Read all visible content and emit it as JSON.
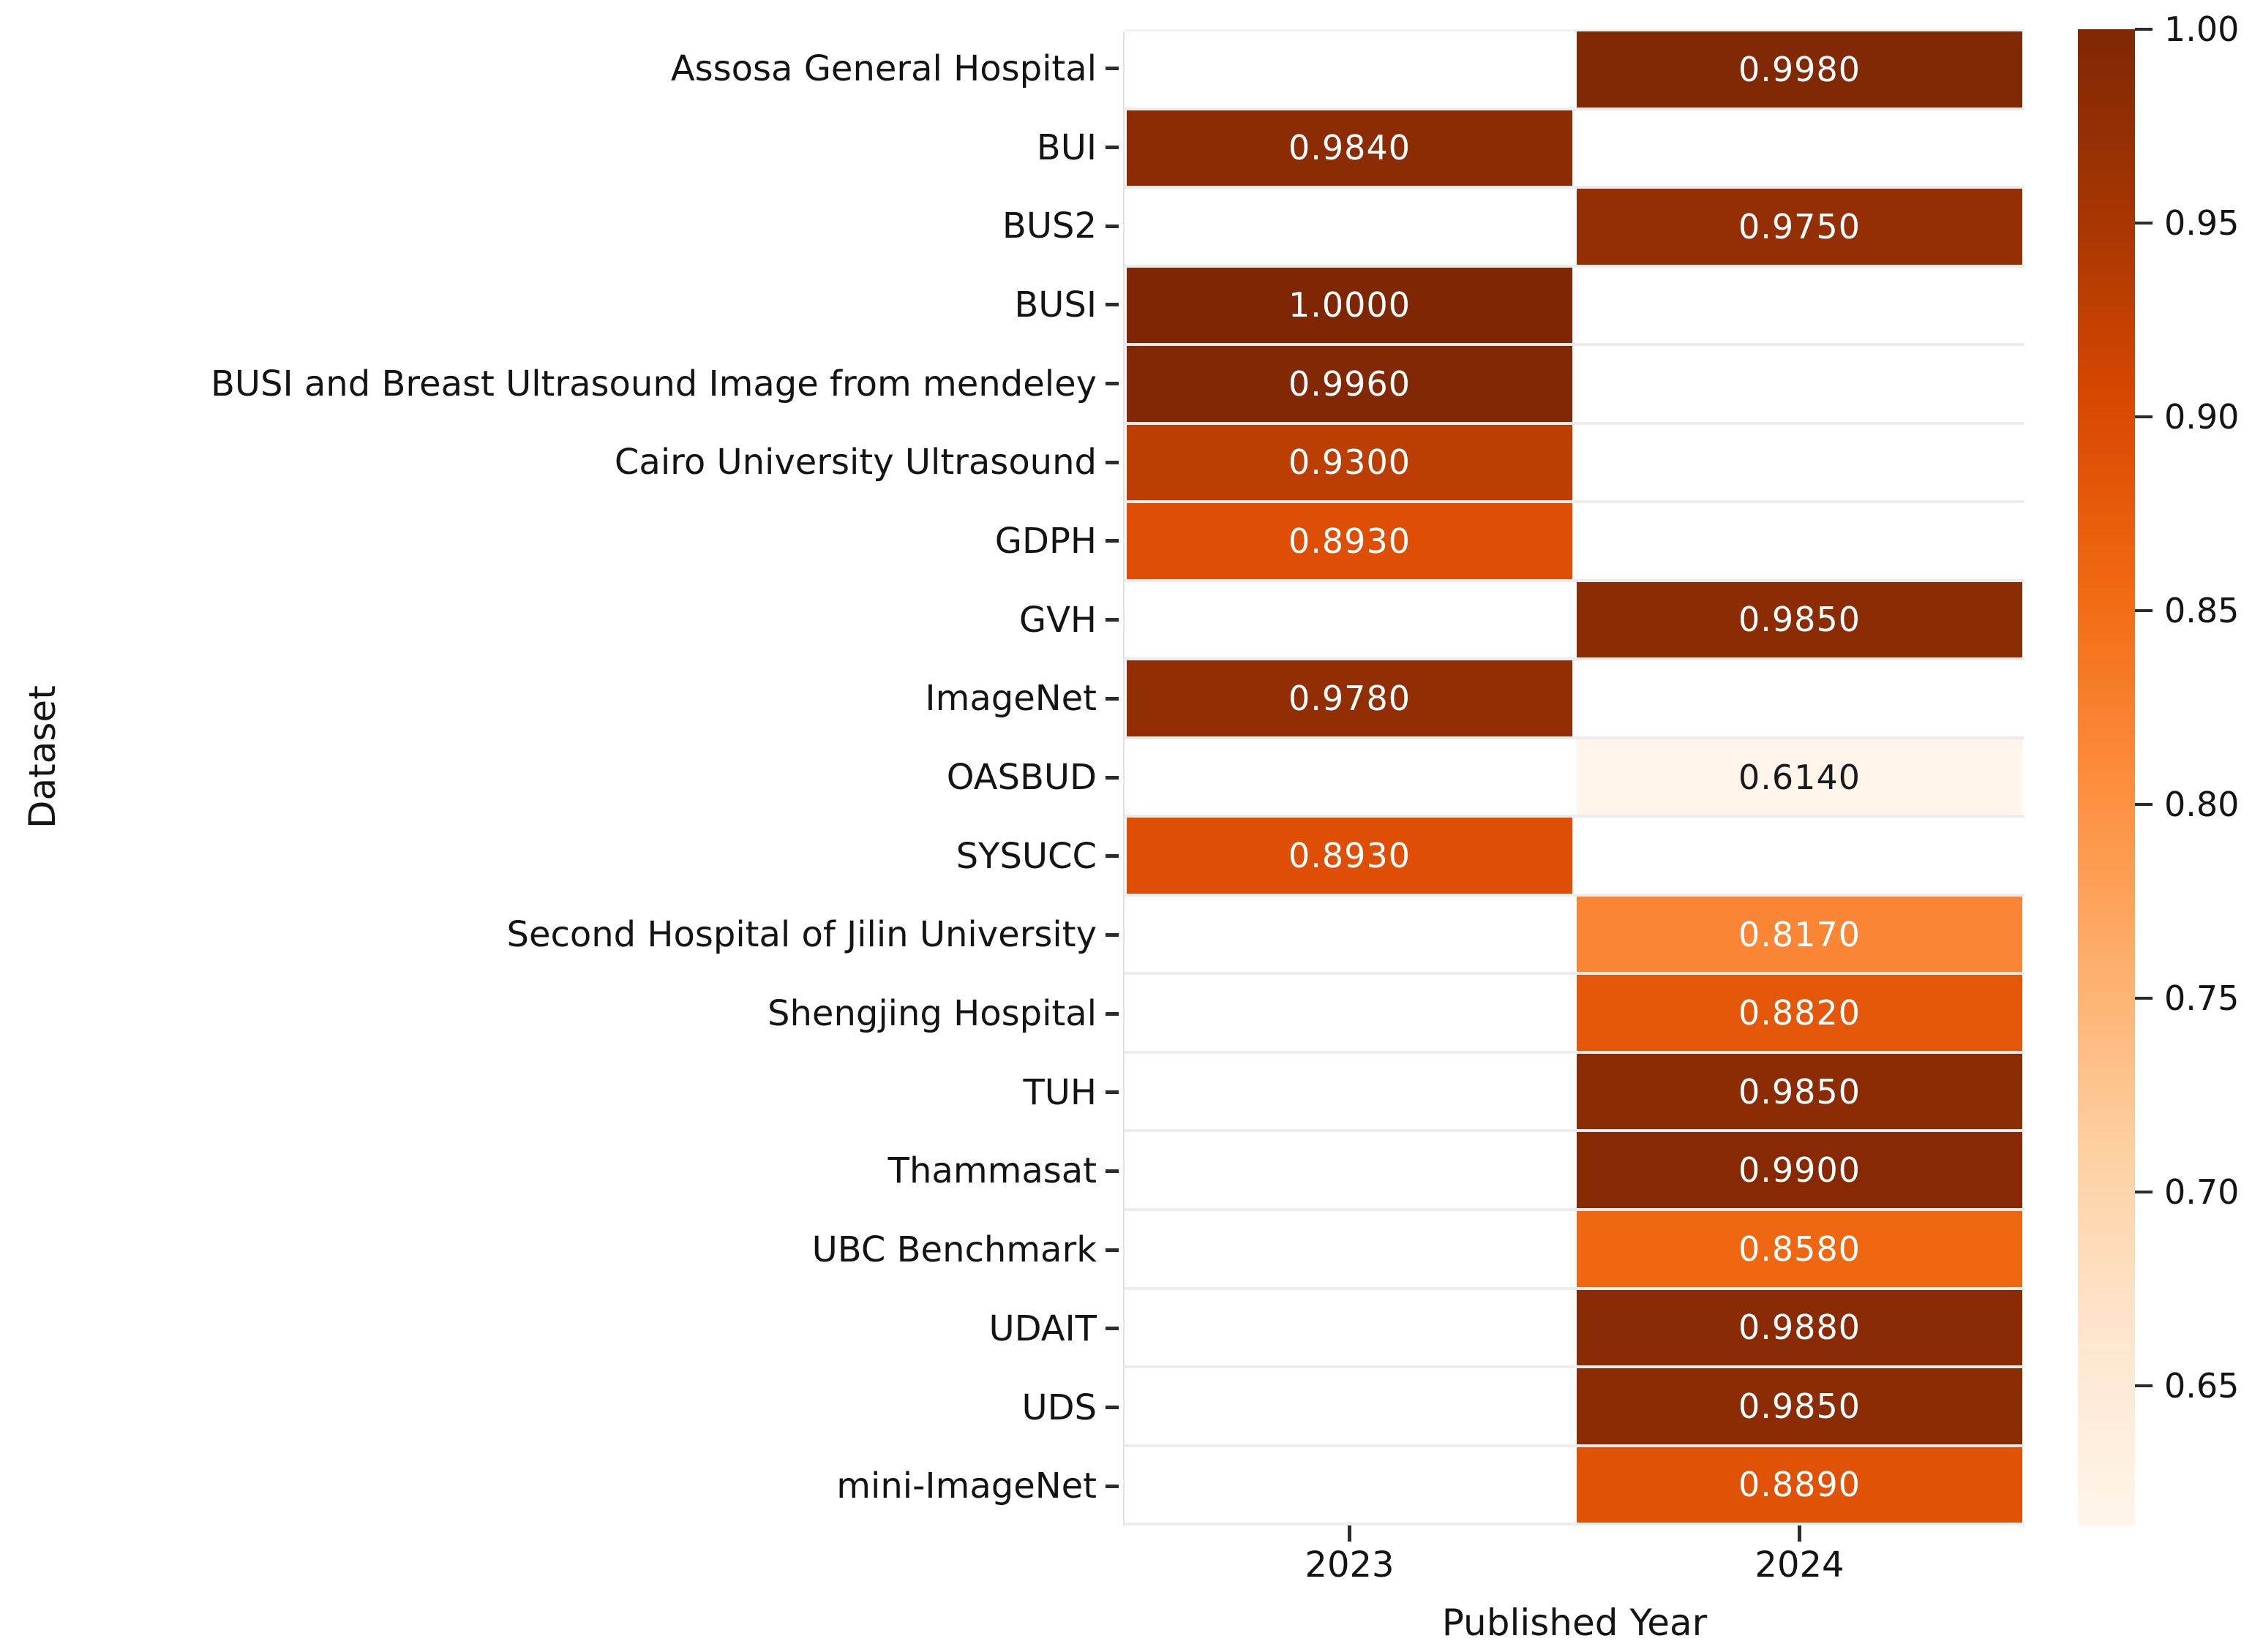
{
  "figure": {
    "xlabel": "Published Year",
    "ylabel": "Dataset"
  },
  "chart_data": {
    "type": "heatmap",
    "title": "",
    "xlabel": "Published Year",
    "ylabel": "Dataset",
    "x_categories": [
      "2023",
      "2024"
    ],
    "y_categories": [
      "Assosa General Hospital",
      "BUI",
      "BUS2",
      "BUSI",
      "BUSI and Breast Ultrasound Image from mendeley",
      "Cairo University Ultrasound",
      "GDPH",
      "GVH",
      "ImageNet",
      "OASBUD",
      "SYSUCC",
      "Second Hospital of Jilin University",
      "Shengjing Hospital",
      "TUH",
      "Thammasat",
      "UBC Benchmark",
      "UDAIT",
      "UDS",
      "mini-ImageNet"
    ],
    "colormap": "Oranges",
    "vmin": 0.614,
    "vmax": 1.0,
    "grid": true,
    "legend_position": "right-colorbar",
    "cells": [
      {
        "dataset": "Assosa General Hospital",
        "year": "2024",
        "value": 0.998,
        "label": "0.9980",
        "color": "#812804",
        "text_color": "#ffffff"
      },
      {
        "dataset": "BUI",
        "year": "2023",
        "value": 0.984,
        "label": "0.9840",
        "color": "#8C2C04",
        "text_color": "#ffffff"
      },
      {
        "dataset": "BUS2",
        "year": "2024",
        "value": 0.975,
        "label": "0.9750",
        "color": "#932F03",
        "text_color": "#ffffff"
      },
      {
        "dataset": "BUSI",
        "year": "2023",
        "value": 1.0,
        "label": "1.0000",
        "color": "#7F2704",
        "text_color": "#ffffff"
      },
      {
        "dataset": "BUSI and Breast Ultrasound Image from mendeley",
        "year": "2023",
        "value": 0.996,
        "label": "0.9960",
        "color": "#822804",
        "text_color": "#ffffff"
      },
      {
        "dataset": "Cairo University Ultrasound",
        "year": "2023",
        "value": 0.93,
        "label": "0.9300",
        "color": "#BD3E02",
        "text_color": "#ffffff"
      },
      {
        "dataset": "GDPH",
        "year": "2023",
        "value": 0.893,
        "label": "0.8930",
        "color": "#DE4F05",
        "text_color": "#ffffff"
      },
      {
        "dataset": "GVH",
        "year": "2024",
        "value": 0.985,
        "label": "0.9850",
        "color": "#8B2C04",
        "text_color": "#ffffff"
      },
      {
        "dataset": "ImageNet",
        "year": "2023",
        "value": 0.978,
        "label": "0.9780",
        "color": "#912E04",
        "text_color": "#ffffff"
      },
      {
        "dataset": "OASBUD",
        "year": "2024",
        "value": 0.614,
        "label": "0.6140",
        "color": "#FFF5EB",
        "text_color": "#1a1a1a"
      },
      {
        "dataset": "SYSUCC",
        "year": "2023",
        "value": 0.893,
        "label": "0.8930",
        "color": "#DE4F05",
        "text_color": "#ffffff"
      },
      {
        "dataset": "Second Hospital of Jilin University",
        "year": "2024",
        "value": 0.817,
        "label": "0.8170",
        "color": "#FA8635",
        "text_color": "#ffffff"
      },
      {
        "dataset": "Shengjing Hospital",
        "year": "2024",
        "value": 0.882,
        "label": "0.8820",
        "color": "#E45709",
        "text_color": "#ffffff"
      },
      {
        "dataset": "TUH",
        "year": "2024",
        "value": 0.985,
        "label": "0.9850",
        "color": "#8B2C04",
        "text_color": "#ffffff"
      },
      {
        "dataset": "Thammasat",
        "year": "2024",
        "value": 0.99,
        "label": "0.9900",
        "color": "#872A04",
        "text_color": "#ffffff"
      },
      {
        "dataset": "UBC Benchmark",
        "year": "2024",
        "value": 0.858,
        "label": "0.8580",
        "color": "#F06712",
        "text_color": "#ffffff"
      },
      {
        "dataset": "UDAIT",
        "year": "2024",
        "value": 0.988,
        "label": "0.9880",
        "color": "#892B04",
        "text_color": "#ffffff"
      },
      {
        "dataset": "UDS",
        "year": "2024",
        "value": 0.985,
        "label": "0.9850",
        "color": "#8B2C04",
        "text_color": "#ffffff"
      },
      {
        "dataset": "mini-ImageNet",
        "year": "2024",
        "value": 0.889,
        "label": "0.8890",
        "color": "#E05206",
        "text_color": "#ffffff"
      }
    ],
    "colorbar": {
      "ticks": [
        {
          "value": 1.0,
          "label": "1.00"
        },
        {
          "value": 0.95,
          "label": "0.95"
        },
        {
          "value": 0.9,
          "label": "0.90"
        },
        {
          "value": 0.85,
          "label": "0.85"
        },
        {
          "value": 0.8,
          "label": "0.80"
        },
        {
          "value": 0.75,
          "label": "0.75"
        },
        {
          "value": 0.7,
          "label": "0.70"
        },
        {
          "value": 0.65,
          "label": "0.65"
        }
      ],
      "gradient_top_to_bottom": [
        "#7f2704",
        "#a63603",
        "#d94801",
        "#f16913",
        "#fd8d3c",
        "#fdae6b",
        "#fdd0a2",
        "#fee6ce",
        "#fff5eb"
      ]
    }
  }
}
